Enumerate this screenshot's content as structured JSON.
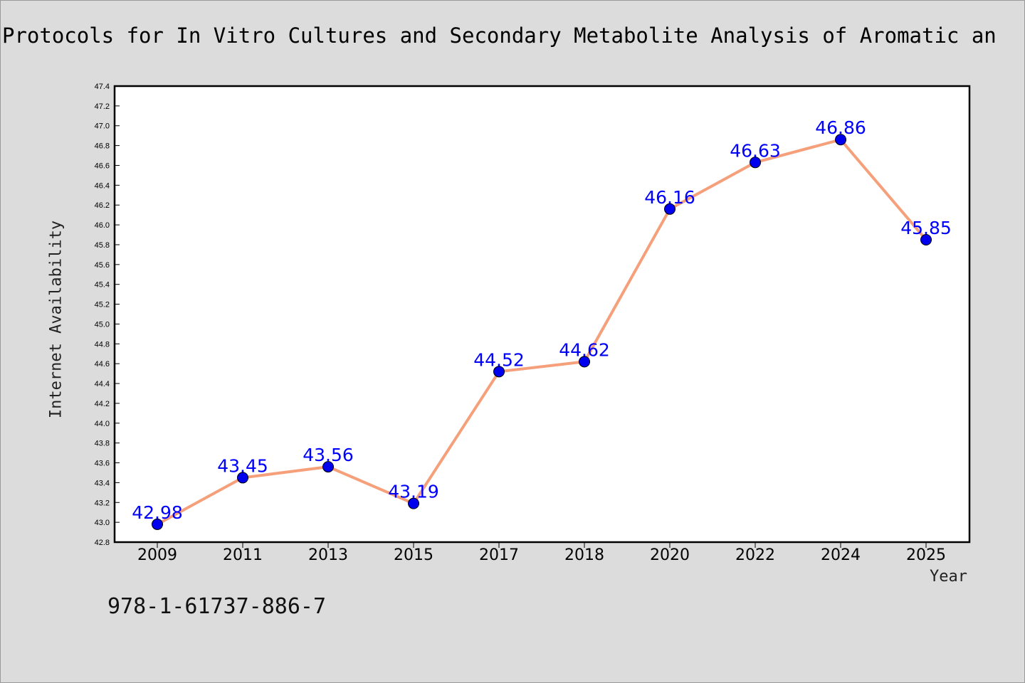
{
  "chart_data": {
    "type": "line",
    "title": "Protocols for In Vitro Cultures and Secondary Metabolite Analysis of Aromatic an",
    "xlabel": "Year",
    "ylabel": "Internet Availability",
    "categories": [
      "2009",
      "2011",
      "2013",
      "2015",
      "2017",
      "2018",
      "2020",
      "2022",
      "2024",
      "2025"
    ],
    "series": [
      {
        "values": [
          42.98,
          43.45,
          43.56,
          43.19,
          44.52,
          44.62,
          46.16,
          46.63,
          46.86,
          45.85
        ],
        "labels": [
          "42.98",
          "43.45",
          "43.56",
          "43.19",
          "44.52",
          "44.62",
          "46.16",
          "46.63",
          "46.86",
          "45.85"
        ]
      }
    ],
    "ylim": [
      42.8,
      47.4
    ],
    "yticks": [
      "42.8",
      "43.0",
      "43.2",
      "43.4",
      "43.6",
      "43.8",
      "44.0",
      "44.2",
      "44.4",
      "44.6",
      "44.8",
      "45.0",
      "45.2",
      "45.4",
      "45.6",
      "45.8",
      "46.0",
      "46.2",
      "46.4",
      "46.6",
      "46.8",
      "47.0",
      "47.2",
      "47.4"
    ],
    "grid": false,
    "legend": "none",
    "colors": {
      "line": "#f5a07a",
      "marker": "#0000ee",
      "label": "#0000ff",
      "plot_bg": "#ffffff",
      "page_bg": "#dcdcdc"
    }
  },
  "footer_text": "978-1-61737-886-7"
}
